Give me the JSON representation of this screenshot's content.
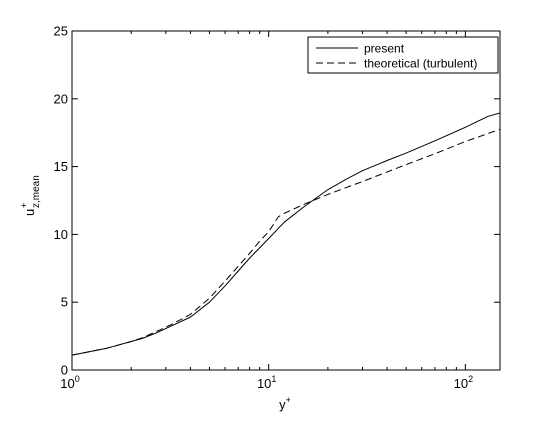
{
  "chart_data": {
    "type": "line",
    "xscale": "log",
    "xlim": [
      1,
      150
    ],
    "ylim": [
      0,
      25
    ],
    "xlabel": "y",
    "xlabel_sup": "+",
    "ylabel": "u",
    "ylabel_sup": "+",
    "ylabel_sub": "z,mean",
    "grid": false,
    "legend_position": "top-right",
    "x_ticks": [
      {
        "value": 1,
        "base": "10",
        "exp": "0"
      },
      {
        "value": 10,
        "base": "10",
        "exp": "1"
      },
      {
        "value": 100,
        "base": "10",
        "exp": "2"
      }
    ],
    "y_ticks": [
      {
        "value": 0,
        "label": "0"
      },
      {
        "value": 5,
        "label": "5"
      },
      {
        "value": 10,
        "label": "10"
      },
      {
        "value": 15,
        "label": "15"
      },
      {
        "value": 20,
        "label": "20"
      },
      {
        "value": 25,
        "label": "25"
      }
    ],
    "series": [
      {
        "name": "present",
        "style": "solid",
        "color": "#000000",
        "points": [
          [
            1.0,
            1.1
          ],
          [
            1.5,
            1.6
          ],
          [
            2.0,
            2.1
          ],
          [
            2.3,
            2.35
          ],
          [
            2.7,
            2.75
          ],
          [
            3.2,
            3.25
          ],
          [
            4.0,
            3.9
          ],
          [
            5.0,
            5.0
          ],
          [
            6.0,
            6.2
          ],
          [
            7.0,
            7.3
          ],
          [
            8.0,
            8.25
          ],
          [
            10.0,
            9.7
          ],
          [
            12.0,
            10.9
          ],
          [
            15.0,
            12.0
          ],
          [
            20.0,
            13.3
          ],
          [
            25.0,
            14.1
          ],
          [
            30.0,
            14.7
          ],
          [
            40.0,
            15.45
          ],
          [
            50.0,
            16.0
          ],
          [
            70.0,
            16.9
          ],
          [
            100.0,
            17.9
          ],
          [
            130.0,
            18.7
          ],
          [
            150.0,
            18.95
          ]
        ]
      },
      {
        "name": "theoretical (turbulent)",
        "style": "dashed",
        "color": "#000000",
        "points": [
          [
            1.0,
            1.1
          ],
          [
            1.5,
            1.6
          ],
          [
            2.0,
            2.1
          ],
          [
            2.3,
            2.4
          ],
          [
            2.7,
            2.85
          ],
          [
            3.2,
            3.35
          ],
          [
            4.0,
            4.1
          ],
          [
            5.0,
            5.3
          ],
          [
            6.0,
            6.55
          ],
          [
            7.0,
            7.65
          ],
          [
            8.0,
            8.6
          ],
          [
            9.0,
            9.5
          ],
          [
            10.0,
            10.2
          ],
          [
            11.2,
            11.3
          ],
          [
            12.0,
            11.55
          ],
          [
            15.0,
            12.2
          ],
          [
            20.0,
            12.95
          ],
          [
            30.0,
            13.9
          ],
          [
            50.0,
            15.15
          ],
          [
            70.0,
            15.95
          ],
          [
            100.0,
            16.85
          ],
          [
            150.0,
            17.75
          ]
        ]
      }
    ]
  }
}
